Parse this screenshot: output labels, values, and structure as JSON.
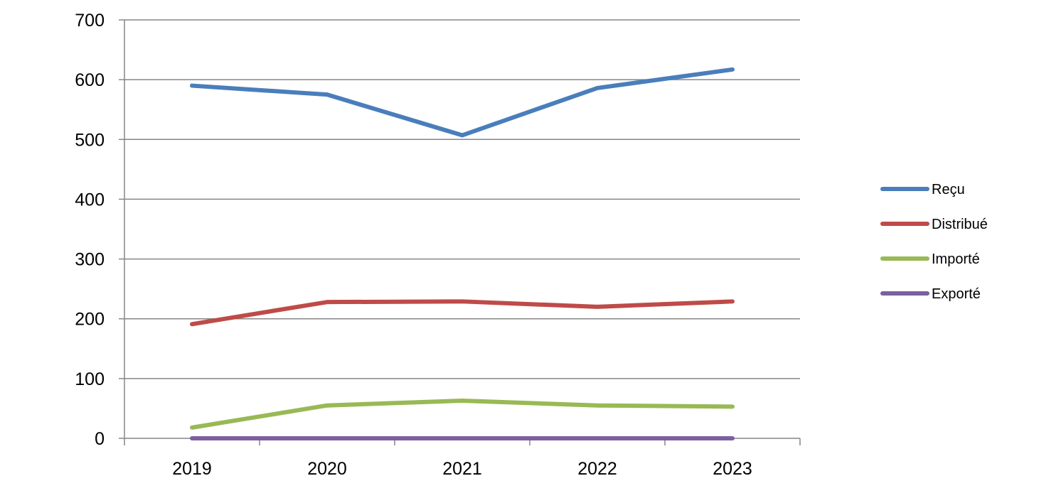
{
  "chart_data": {
    "type": "line",
    "title": "",
    "xlabel": "",
    "ylabel": "",
    "categories": [
      "2019",
      "2020",
      "2021",
      "2022",
      "2023"
    ],
    "ylim": [
      0,
      700
    ],
    "yticks": [
      0,
      100,
      200,
      300,
      400,
      500,
      600,
      700
    ],
    "grid": "horizontal",
    "legend_position": "right",
    "series": [
      {
        "name": "Reçu",
        "color": "#4a7ebb",
        "values": [
          590,
          575,
          507,
          586,
          617
        ]
      },
      {
        "name": "Distribué",
        "color": "#be4b48",
        "values": [
          191,
          228,
          229,
          220,
          229
        ]
      },
      {
        "name": "Importé",
        "color": "#98b954",
        "values": [
          18,
          55,
          63,
          55,
          53
        ]
      },
      {
        "name": "Exporté",
        "color": "#7d5fa0",
        "values": [
          0,
          0,
          0,
          0,
          0
        ]
      }
    ]
  }
}
